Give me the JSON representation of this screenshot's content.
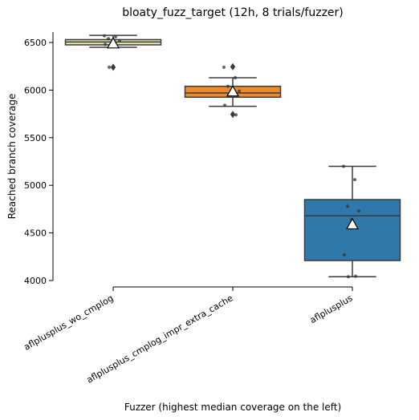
{
  "chart_data": {
    "type": "box",
    "title": "bloaty_fuzz_target (12h, 8 trials/fuzzer)",
    "xlabel": "Fuzzer (highest median coverage on the left)",
    "ylabel": "Reached branch coverage",
    "ylim": [
      4000,
      6600
    ],
    "yticks": [
      4000,
      4500,
      5000,
      5500,
      6000,
      6500
    ],
    "categories": [
      "aflplusplus_wo_cmplog",
      "aflplusplus_cmplog_impr_extra_cache",
      "aflplusplus"
    ],
    "colors": [
      "#e6e6b0",
      "#ec8a2c",
      "#2f79aa"
    ],
    "boxes": [
      {
        "name": "aflplusplus_wo_cmplog",
        "whisker_low": 6450,
        "q1": 6475,
        "median": 6505,
        "q3": 6530,
        "whisker_high": 6575,
        "mean": 6490,
        "outliers": [
          6240
        ],
        "points": [
          6570,
          6560,
          6540,
          6520,
          6500,
          6480,
          6460,
          6240
        ]
      },
      {
        "name": "aflplusplus_cmplog_impr_extra_cache",
        "whisker_low": 5830,
        "q1": 5925,
        "median": 5970,
        "q3": 6040,
        "whisker_high": 6130,
        "mean": 5985,
        "outliers": [
          6245,
          5745
        ],
        "points": [
          6240,
          6130,
          6040,
          5990,
          5970,
          5840,
          5740,
          5960
        ]
      },
      {
        "name": "aflplusplus",
        "whisker_low": 4040,
        "q1": 4210,
        "median": 4680,
        "q3": 4850,
        "whisker_high": 5200,
        "mean": 4590,
        "outliers": [],
        "points": [
          5200,
          5060,
          4780,
          4730,
          4640,
          4270,
          4045,
          4040
        ]
      }
    ]
  }
}
